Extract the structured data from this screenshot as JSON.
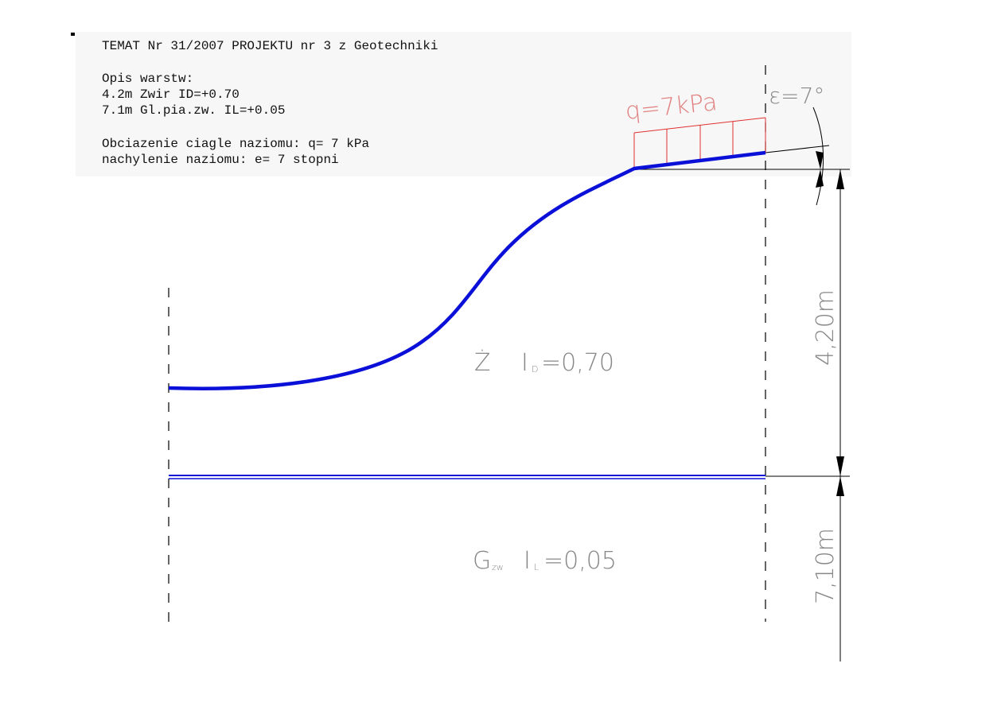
{
  "header": {
    "title": "TEMAT Nr 31/2007 PROJEKTU nr 3 z Geotechniki",
    "layers_heading": "Opis warstw:",
    "layers": [
      "4.2m Zwir  ID=+0.70",
      "7.1m Gl.pia.zw.  IL=+0.05"
    ],
    "load": "Obciazenie ciagle naziomu: q=  7 kPa",
    "slope": "nachylenie naziomu: e=  7 stopni"
  },
  "drawing": {
    "load_label": "q=7kPa",
    "angle_label": "ε=7°",
    "layer1": {
      "symbol": "Ż",
      "index": "I",
      "index_sub": "D",
      "value": "=0,70"
    },
    "layer2": {
      "symbol": "G",
      "symbol_sub": "zw",
      "index": "I",
      "index_sub": "L",
      "value": "=0,05"
    },
    "dim1": "4,20m",
    "dim2": "7,10m"
  }
}
